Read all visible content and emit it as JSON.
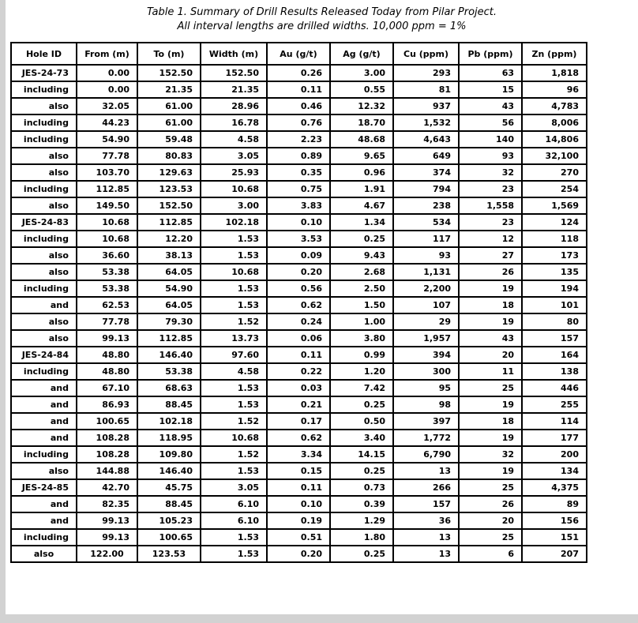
{
  "title": {
    "line1": "Table 1. Summary of Drill Results Released Today from Pilar Project.",
    "line2": "All interval lengths are drilled widths. 10,000 ppm = 1%"
  },
  "colors": {
    "page_edge_background": "#d2d2d2",
    "content_background": "#ffffff",
    "table_border": "#000000",
    "text": "#000000"
  },
  "table": {
    "columns": [
      "Hole ID",
      "From (m)",
      "To (m)",
      "Width (m)",
      "Au (g/t)",
      "Ag (g/t)",
      "Cu (ppm)",
      "Pb (ppm)",
      "Zn (ppm)"
    ],
    "rows": [
      [
        "JES-24-73",
        "0.00",
        "152.50",
        "152.50",
        "0.26",
        "3.00",
        "293",
        "63",
        "1,818"
      ],
      [
        "including",
        "0.00",
        "21.35",
        "21.35",
        "0.11",
        "0.55",
        "81",
        "15",
        "96"
      ],
      [
        "also",
        "32.05",
        "61.00",
        "28.96",
        "0.46",
        "12.32",
        "937",
        "43",
        "4,783"
      ],
      [
        "including",
        "44.23",
        "61.00",
        "16.78",
        "0.76",
        "18.70",
        "1,532",
        "56",
        "8,006"
      ],
      [
        "including",
        "54.90",
        "59.48",
        "4.58",
        "2.23",
        "48.68",
        "4,643",
        "140",
        "14,806"
      ],
      [
        "also",
        "77.78",
        "80.83",
        "3.05",
        "0.89",
        "9.65",
        "649",
        "93",
        "32,100"
      ],
      [
        "also",
        "103.70",
        "129.63",
        "25.93",
        "0.35",
        "0.96",
        "374",
        "32",
        "270"
      ],
      [
        "including",
        "112.85",
        "123.53",
        "10.68",
        "0.75",
        "1.91",
        "794",
        "23",
        "254"
      ],
      [
        "also",
        "149.50",
        "152.50",
        "3.00",
        "3.83",
        "4.67",
        "238",
        "1,558",
        "1,569"
      ],
      [
        "JES-24-83",
        "10.68",
        "112.85",
        "102.18",
        "0.10",
        "1.34",
        "534",
        "23",
        "124"
      ],
      [
        "including",
        "10.68",
        "12.20",
        "1.53",
        "3.53",
        "0.25",
        "117",
        "12",
        "118"
      ],
      [
        "also",
        "36.60",
        "38.13",
        "1.53",
        "0.09",
        "9.43",
        "93",
        "27",
        "173"
      ],
      [
        "also",
        "53.38",
        "64.05",
        "10.68",
        "0.20",
        "2.68",
        "1,131",
        "26",
        "135"
      ],
      [
        "including",
        "53.38",
        "54.90",
        "1.53",
        "0.56",
        "2.50",
        "2,200",
        "19",
        "194"
      ],
      [
        "and",
        "62.53",
        "64.05",
        "1.53",
        "0.62",
        "1.50",
        "107",
        "18",
        "101"
      ],
      [
        "also",
        "77.78",
        "79.30",
        "1.52",
        "0.24",
        "1.00",
        "29",
        "19",
        "80"
      ],
      [
        "also",
        "99.13",
        "112.85",
        "13.73",
        "0.06",
        "3.80",
        "1,957",
        "43",
        "157"
      ],
      [
        "JES-24-84",
        "48.80",
        "146.40",
        "97.60",
        "0.11",
        "0.99",
        "394",
        "20",
        "164"
      ],
      [
        "including",
        "48.80",
        "53.38",
        "4.58",
        "0.22",
        "1.20",
        "300",
        "11",
        "138"
      ],
      [
        "and",
        "67.10",
        "68.63",
        "1.53",
        "0.03",
        "7.42",
        "95",
        "25",
        "446"
      ],
      [
        "and",
        "86.93",
        "88.45",
        "1.53",
        "0.21",
        "0.25",
        "98",
        "19",
        "255"
      ],
      [
        "and",
        "100.65",
        "102.18",
        "1.52",
        "0.17",
        "0.50",
        "397",
        "18",
        "114"
      ],
      [
        "and",
        "108.28",
        "118.95",
        "10.68",
        "0.62",
        "3.40",
        "1,772",
        "19",
        "177"
      ],
      [
        "including",
        "108.28",
        "109.80",
        "1.52",
        "3.34",
        "14.15",
        "6,790",
        "32",
        "200"
      ],
      [
        "also",
        "144.88",
        "146.40",
        "1.53",
        "0.15",
        "0.25",
        "13",
        "19",
        "134"
      ],
      [
        "JES-24-85",
        "42.70",
        "45.75",
        "3.05",
        "0.11",
        "0.73",
        "266",
        "25",
        "4,375"
      ],
      [
        "and",
        "82.35",
        "88.45",
        "6.10",
        "0.10",
        "0.39",
        "157",
        "26",
        "89"
      ],
      [
        "and",
        "99.13",
        "105.23",
        "6.10",
        "0.19",
        "1.29",
        "36",
        "20",
        "156"
      ],
      [
        "including",
        "99.13",
        "100.65",
        "1.53",
        "0.51",
        "1.80",
        "13",
        "25",
        "151"
      ],
      [
        "also",
        "122.00",
        "123.53",
        "1.53",
        "0.20",
        "0.25",
        "13",
        "6",
        "207"
      ]
    ]
  }
}
